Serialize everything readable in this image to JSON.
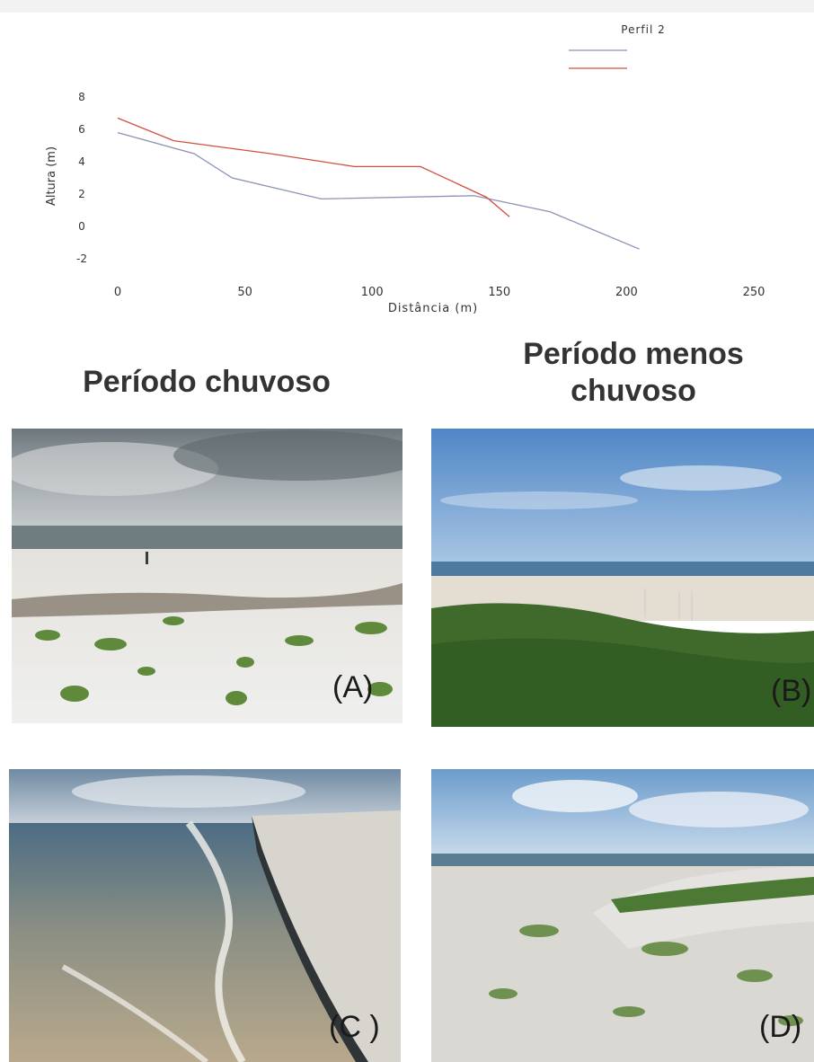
{
  "chart_data": {
    "type": "line",
    "title": "Perfil 2",
    "xlabel": "Distância (m)",
    "ylabel": "Altura (m)",
    "xlim": [
      0,
      250
    ],
    "ylim": [
      -2,
      8
    ],
    "x_ticks": [
      "0",
      "50",
      "100",
      "150",
      "200",
      "250"
    ],
    "y_ticks": [
      "8",
      "6",
      "4",
      "2",
      "0",
      "-2"
    ],
    "grid": false,
    "legend_position": "top-right",
    "series": [
      {
        "color": "#8a92b8",
        "x": [
          0,
          30,
          45,
          80,
          140,
          170,
          205
        ],
        "y": [
          5.8,
          4.5,
          3.0,
          1.7,
          1.9,
          0.9,
          -1.4
        ]
      },
      {
        "color": "#d05040",
        "x": [
          0,
          22,
          60,
          93,
          119,
          145,
          154
        ],
        "y": [
          6.7,
          5.3,
          4.5,
          3.7,
          3.7,
          1.8,
          0.6
        ]
      }
    ]
  },
  "headings": {
    "rainy": "Período chuvoso",
    "less_rainy": "Período menos chuvoso"
  },
  "photos": [
    {
      "label": "(A)"
    },
    {
      "label": "(B)"
    },
    {
      "label": "(C )"
    },
    {
      "label": "(D)"
    }
  ]
}
